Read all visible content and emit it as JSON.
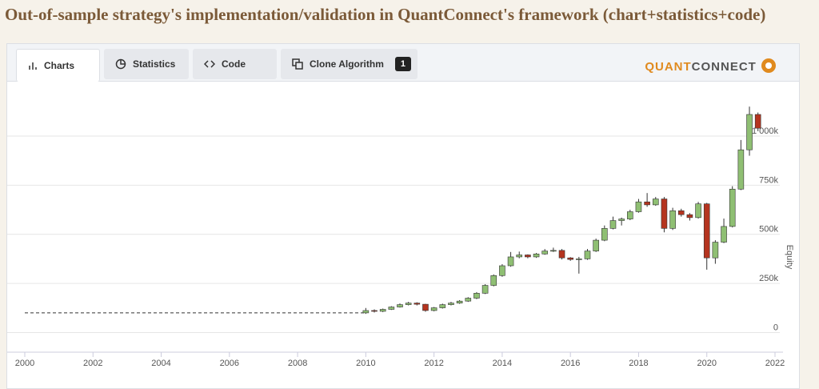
{
  "title": "Out-of-sample strategy's implementation/validation in QuantConnect's framework (chart+statistics+code)",
  "tabs": [
    "Charts",
    "Statistics",
    "Code",
    "Clone Algorithm"
  ],
  "clone_count": 1,
  "logo": {
    "first": "QUANT",
    "second": "CONNECT"
  },
  "chart_data": {
    "type": "candlestick",
    "y_label": "Equity",
    "x": [
      2010,
      2010.25,
      2010.5,
      2010.75,
      2011,
      2011.25,
      2011.5,
      2011.75,
      2012,
      2012.25,
      2012.5,
      2012.75,
      2013,
      2013.25,
      2013.5,
      2013.75,
      2014,
      2014.25,
      2014.5,
      2014.75,
      2015,
      2015.25,
      2015.5,
      2015.75,
      2016,
      2016.25,
      2016.5,
      2016.75,
      2017,
      2017.25,
      2017.5,
      2017.75,
      2018,
      2018.25,
      2018.5,
      2018.75,
      2019,
      2019.25,
      2019.5,
      2019.75,
      2020,
      2020.25,
      2020.5,
      2020.75,
      2021,
      2021.25,
      2021.5
    ],
    "open": [
      100000,
      112000,
      108000,
      118000,
      130000,
      142000,
      150000,
      144000,
      112000,
      126000,
      142000,
      150000,
      160000,
      175000,
      200000,
      240000,
      290000,
      340000,
      385000,
      395000,
      385000,
      400000,
      415000,
      418000,
      380000,
      372000,
      375000,
      415000,
      470000,
      530000,
      570000,
      578000,
      615000,
      665000,
      650000,
      680000,
      530000,
      620000,
      600000,
      585000,
      655000,
      380000,
      460000,
      540000,
      730000,
      930000,
      1110000
    ],
    "high": [
      125000,
      118000,
      122000,
      134000,
      148000,
      156000,
      154000,
      146000,
      130000,
      147000,
      156000,
      165000,
      180000,
      206000,
      246000,
      296000,
      348000,
      410000,
      412000,
      398000,
      405000,
      425000,
      432000,
      425000,
      384000,
      385000,
      425000,
      478000,
      545000,
      590000,
      585000,
      625000,
      680000,
      710000,
      690000,
      690000,
      635000,
      630000,
      608000,
      665000,
      660000,
      470000,
      580000,
      745000,
      980000,
      1150000,
      1120000
    ],
    "low": [
      95000,
      102000,
      104000,
      115000,
      127000,
      138000,
      138000,
      106000,
      108000,
      122000,
      138000,
      146000,
      156000,
      170000,
      196000,
      235000,
      284000,
      335000,
      378000,
      378000,
      380000,
      396000,
      410000,
      372000,
      365000,
      300000,
      370000,
      410000,
      465000,
      525000,
      545000,
      572000,
      610000,
      640000,
      645000,
      510000,
      522000,
      590000,
      570000,
      580000,
      320000,
      350000,
      455000,
      535000,
      725000,
      900000,
      1025000
    ],
    "close": [
      112000,
      108000,
      118000,
      130000,
      142000,
      150000,
      144000,
      112000,
      126000,
      142000,
      150000,
      160000,
      175000,
      200000,
      240000,
      290000,
      340000,
      385000,
      395000,
      385000,
      400000,
      415000,
      418000,
      380000,
      372000,
      375000,
      415000,
      470000,
      530000,
      570000,
      578000,
      615000,
      665000,
      650000,
      680000,
      530000,
      620000,
      600000,
      585000,
      655000,
      380000,
      460000,
      540000,
      730000,
      930000,
      1110000,
      1040000
    ],
    "up_color": "#8fbf73",
    "down_color": "#b5341f",
    "line": {
      "x": [
        2000,
        2010
      ],
      "values": [
        100000,
        100000
      ]
    },
    "xlim": [
      2000,
      2022
    ],
    "xticks": [
      2000,
      2002,
      2004,
      2006,
      2008,
      2010,
      2012,
      2014,
      2016,
      2018,
      2020,
      2022
    ],
    "ylim": [
      -100000,
      1220000
    ],
    "yticks": [
      0,
      {
        "value": 250000,
        "label": "250k"
      },
      {
        "value": 500000,
        "label": "500k"
      },
      {
        "value": 750000,
        "label": "750k"
      },
      {
        "value": 1000000,
        "label": "1 000k"
      }
    ],
    "grid": true
  }
}
